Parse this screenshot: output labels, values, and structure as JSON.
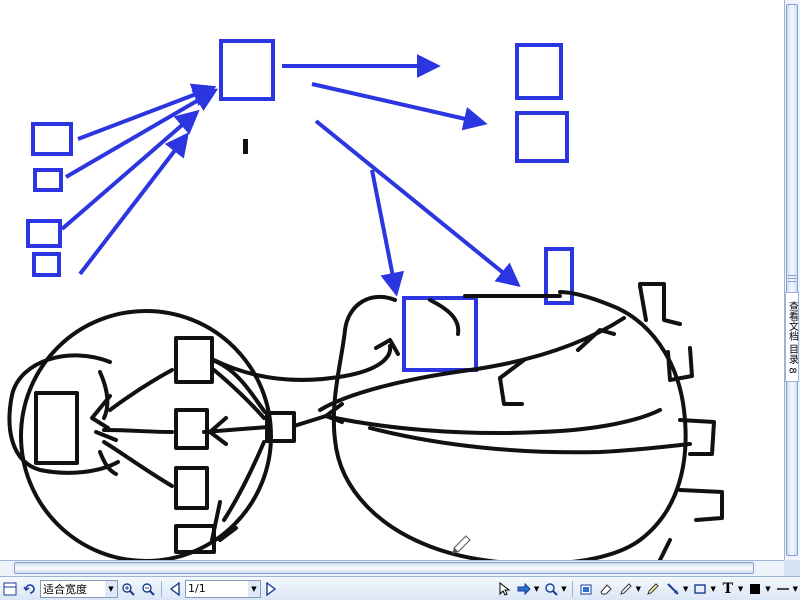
{
  "side_panel": {
    "label": "查看文档 目录 8"
  },
  "toolbar": {
    "zoom_select": {
      "value": "适合宽度"
    },
    "page_field": {
      "value": "1/1"
    },
    "icons": [
      "page-layout-icon",
      "rotate-icon",
      "zoom-in-icon",
      "zoom-out-icon",
      "prev-page-icon",
      "next-page-icon",
      "pointer-icon",
      "hand-icon",
      "magnify-icon",
      "snapshot-icon",
      "eraser-icon",
      "pencil-icon",
      "highlighter-icon",
      "pen-icon",
      "line-icon",
      "rectangle-icon",
      "text-icon",
      "fill-color-icon",
      "line-style-icon"
    ]
  },
  "colors": {
    "blue": "#2b35e0",
    "ink": "#111111",
    "toolbar": "#dbe6f5"
  }
}
